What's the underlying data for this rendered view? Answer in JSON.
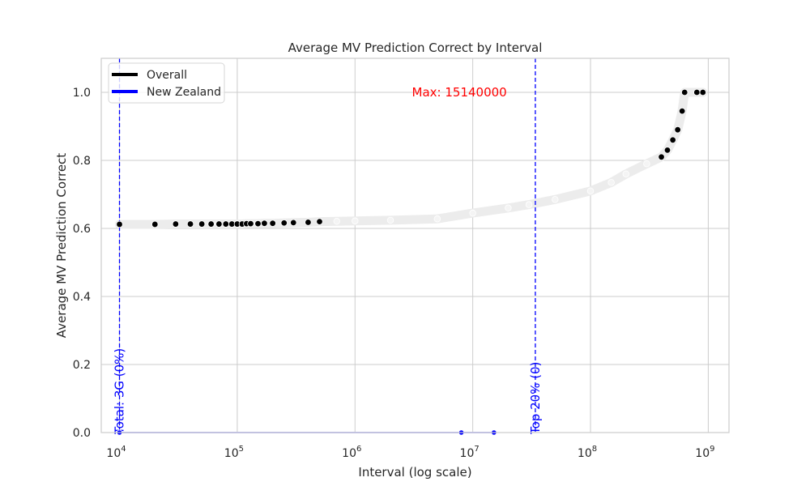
{
  "chart_data": {
    "type": "scatter",
    "title": "Average MV Prediction Correct by Interval",
    "xlabel": "Interval (log scale)",
    "ylabel": "Average MV Prediction Correct",
    "x_scale": "log",
    "xlim": [
      7000,
      1500000000
    ],
    "ylim": [
      0,
      1.1
    ],
    "x_ticks": [
      {
        "value": 10000,
        "base": "10",
        "exp": "4"
      },
      {
        "value": 100000,
        "base": "10",
        "exp": "5"
      },
      {
        "value": 1000000,
        "base": "10",
        "exp": "6"
      },
      {
        "value": 10000000,
        "base": "10",
        "exp": "7"
      },
      {
        "value": 100000000,
        "base": "10",
        "exp": "8"
      },
      {
        "value": 1000000000,
        "base": "10",
        "exp": "9"
      }
    ],
    "y_ticks": [
      "0.0",
      "0.2",
      "0.4",
      "0.6",
      "0.8",
      "1.0"
    ],
    "grid": true,
    "legend_position": "top-left",
    "legend": [
      {
        "label": "Overall",
        "color": "#000000"
      },
      {
        "label": "New Zealand",
        "color": "#0000ff"
      }
    ],
    "series": [
      {
        "name": "Overall",
        "color": "#000000",
        "x": [
          10000,
          20000,
          30000,
          40000,
          50000,
          60000,
          70000,
          80000,
          90000,
          100000,
          110000,
          120000,
          130000,
          150000,
          170000,
          200000,
          250000,
          300000,
          400000,
          500000,
          700000,
          1000000,
          2000000,
          5000000,
          10000000,
          20000000,
          30000000,
          50000000,
          100000000,
          150000000,
          200000000,
          300000000,
          400000000,
          450000000,
          500000000,
          550000000,
          600000000,
          630000000,
          800000000,
          900000000
        ],
        "y": [
          0.612,
          0.612,
          0.613,
          0.613,
          0.613,
          0.613,
          0.613,
          0.613,
          0.613,
          0.613,
          0.613,
          0.614,
          0.614,
          0.614,
          0.615,
          0.615,
          0.616,
          0.617,
          0.618,
          0.62,
          0.621,
          0.622,
          0.624,
          0.628,
          0.645,
          0.66,
          0.67,
          0.685,
          0.71,
          0.735,
          0.76,
          0.79,
          0.81,
          0.83,
          0.86,
          0.89,
          0.945,
          1.0,
          1.0,
          1.0
        ]
      },
      {
        "name": "New Zealand",
        "color": "#0000ff",
        "x": [
          10000,
          8000000,
          15140000
        ],
        "y": [
          0.0,
          0.0,
          0.0
        ]
      }
    ],
    "vlines": [
      {
        "x": 10000,
        "label": "Total: 3G (0%)",
        "color": "#0000ff"
      },
      {
        "x": 34000000,
        "label": "Top 20% (0)",
        "color": "#0000ff"
      }
    ],
    "annotations": [
      {
        "text": "Max: 15140000",
        "x": 8000000,
        "y": 1.0,
        "color": "#ff0000"
      }
    ]
  }
}
